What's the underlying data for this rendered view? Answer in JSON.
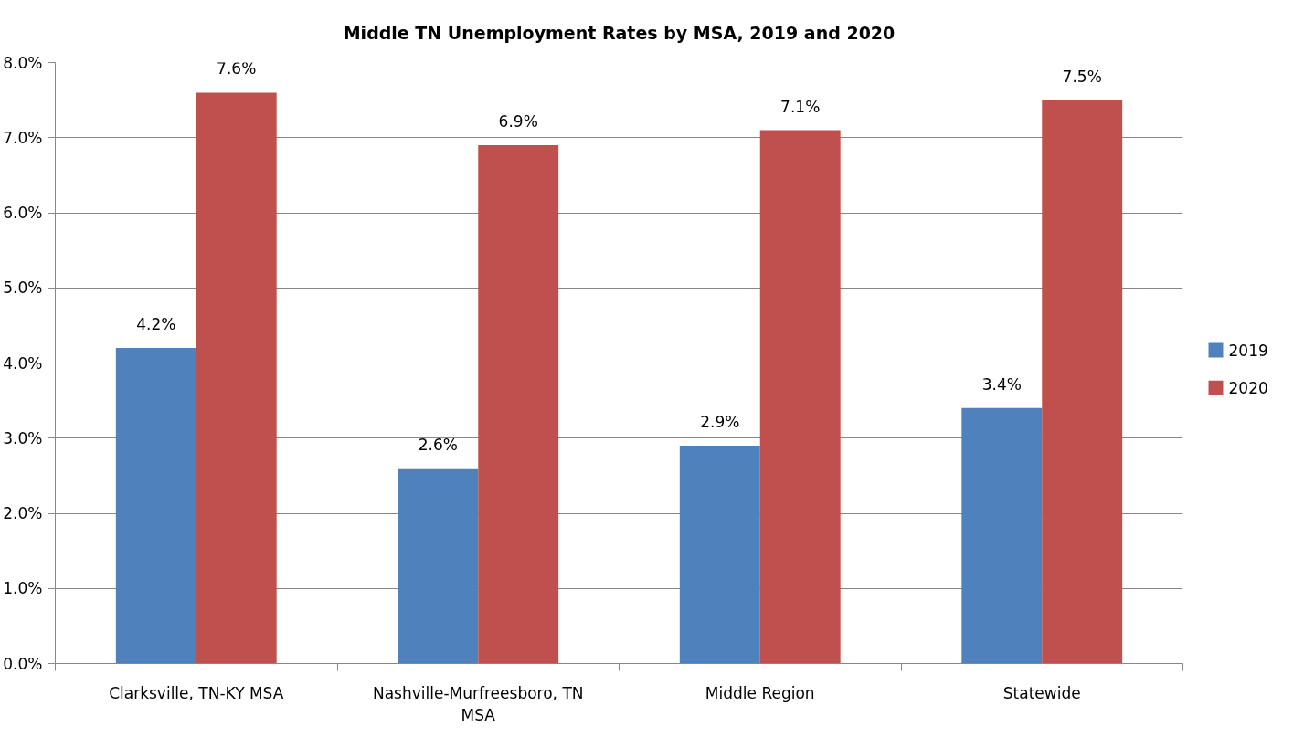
{
  "chart_data": {
    "type": "bar",
    "title": "Middle TN Unemployment Rates by MSA, 2019 and 2020",
    "categories": [
      "Clarksville, TN-KY MSA",
      "Nashville-Murfreesboro, TN MSA",
      "Middle Region",
      "Statewide"
    ],
    "series": [
      {
        "name": "2019",
        "color": "#4f81bd",
        "values": [
          4.2,
          2.6,
          2.9,
          3.4
        ],
        "value_labels": [
          "4.2%",
          "2.6%",
          "2.9%",
          "3.4%"
        ]
      },
      {
        "name": "2020",
        "color": "#c0504d",
        "values": [
          7.6,
          6.9,
          7.1,
          7.5
        ],
        "value_labels": [
          "7.6%",
          "6.9%",
          "7.1%",
          "7.5%"
        ]
      }
    ],
    "ylim": [
      0,
      8
    ],
    "yticks": [
      {
        "value": 0,
        "label": "0.0%"
      },
      {
        "value": 1,
        "label": "1.0%"
      },
      {
        "value": 2,
        "label": "2.0%"
      },
      {
        "value": 3,
        "label": "3.0%"
      },
      {
        "value": 4,
        "label": "4.0%"
      },
      {
        "value": 5,
        "label": "5.0%"
      },
      {
        "value": 6,
        "label": "6.0%"
      },
      {
        "value": 7,
        "label": "7.0%"
      },
      {
        "value": 8,
        "label": "8.0%"
      }
    ],
    "grid": "y",
    "legend": "right"
  }
}
